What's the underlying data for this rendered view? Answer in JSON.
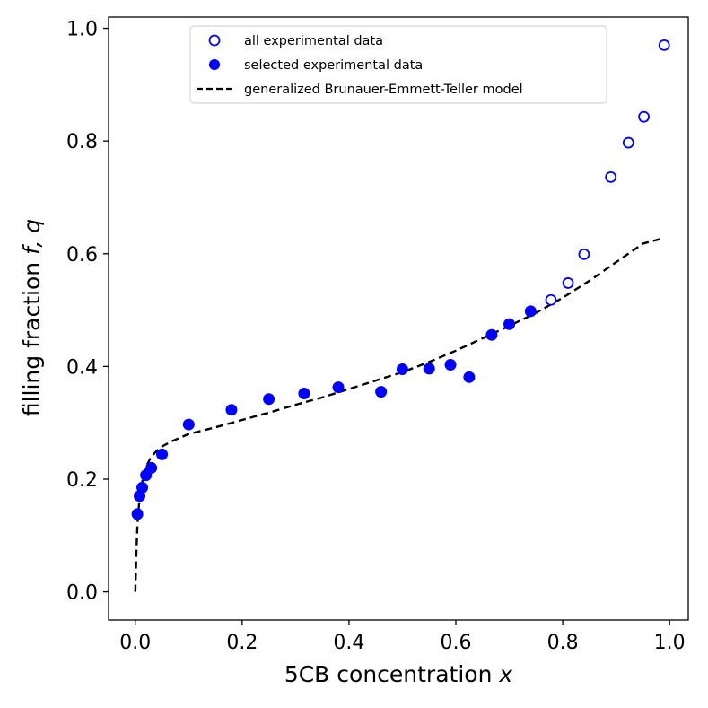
{
  "chart_data": {
    "type": "scatter",
    "title": "",
    "xlabel": "5CB concentration",
    "xlabel_var": "x",
    "ylabel": "filling fraction",
    "ylabel_var": "f, q",
    "xlim": [
      -0.05,
      1.035
    ],
    "ylim": [
      -0.05,
      1.02
    ],
    "xticks": [
      0.0,
      0.2,
      0.4,
      0.6,
      0.8,
      1.0
    ],
    "xtick_labels": [
      "0.0",
      "0.2",
      "0.4",
      "0.6",
      "0.8",
      "1.0"
    ],
    "yticks": [
      0.0,
      0.2,
      0.4,
      0.6,
      0.8,
      1.0
    ],
    "ytick_labels": [
      "0.0",
      "0.2",
      "0.4",
      "0.6",
      "0.8",
      "1.0"
    ],
    "grid": false,
    "legend_position": "upper-center",
    "series": [
      {
        "name": "all experimental data",
        "marker": "open-circle",
        "color": "#0000ff",
        "x": [
          0.778,
          0.81,
          0.84,
          0.89,
          0.923,
          0.952,
          0.99
        ],
        "y": [
          0.518,
          0.548,
          0.599,
          0.736,
          0.797,
          0.843,
          0.97
        ]
      },
      {
        "name": "selected experimental data",
        "marker": "filled-circle",
        "color": "#0000ff",
        "x": [
          0.004,
          0.008,
          0.013,
          0.02,
          0.03,
          0.05,
          0.1,
          0.18,
          0.25,
          0.316,
          0.38,
          0.46,
          0.5,
          0.55,
          0.59,
          0.625,
          0.667,
          0.7,
          0.74
        ],
        "y": [
          0.138,
          0.17,
          0.185,
          0.207,
          0.22,
          0.244,
          0.297,
          0.323,
          0.342,
          0.352,
          0.363,
          0.355,
          0.395,
          0.396,
          0.403,
          0.381,
          0.456,
          0.475,
          0.498
        ]
      },
      {
        "name": "generalized Brunauer-Emmett-Teller model",
        "marker": "dashed-line",
        "color": "#000000",
        "x": [
          0.0,
          0.002,
          0.004,
          0.007,
          0.01,
          0.015,
          0.02,
          0.03,
          0.04,
          0.05,
          0.07,
          0.1,
          0.15,
          0.2,
          0.25,
          0.3,
          0.35,
          0.4,
          0.45,
          0.5,
          0.55,
          0.6,
          0.65,
          0.7,
          0.75,
          0.8,
          0.85,
          0.9,
          0.95,
          0.99
        ],
        "y": [
          0.0,
          0.07,
          0.12,
          0.155,
          0.18,
          0.205,
          0.222,
          0.24,
          0.25,
          0.258,
          0.268,
          0.28,
          0.292,
          0.305,
          0.318,
          0.332,
          0.345,
          0.36,
          0.375,
          0.39,
          0.408,
          0.428,
          0.45,
          0.472,
          0.495,
          0.522,
          0.552,
          0.585,
          0.618,
          0.628
        ]
      }
    ]
  }
}
